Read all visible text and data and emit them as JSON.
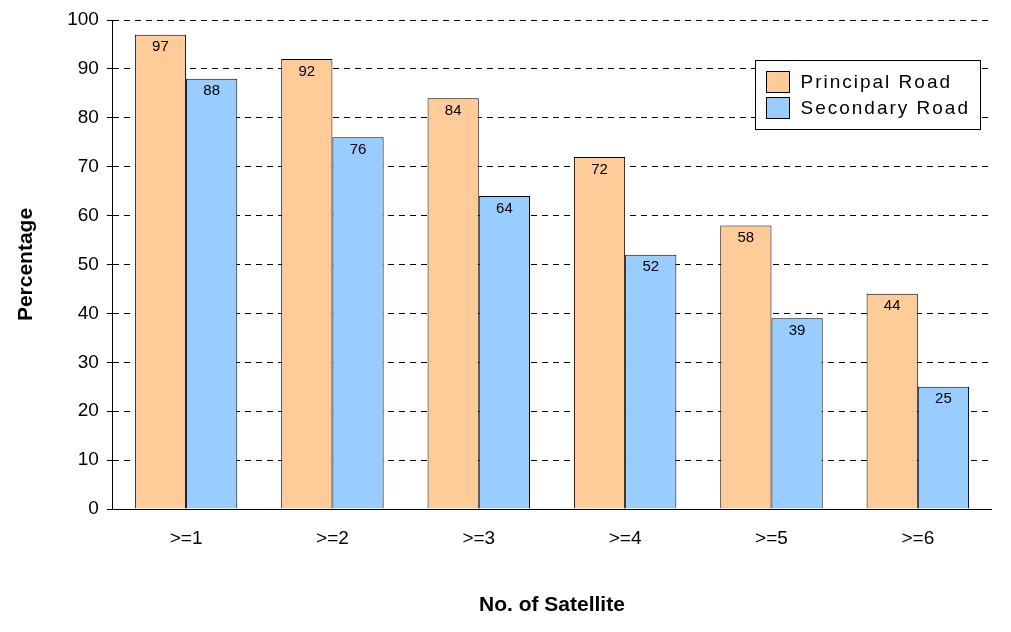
{
  "chart_data": {
    "type": "bar",
    "xlabel": "No. of Satellite",
    "ylabel": "Percentage",
    "categories": [
      ">=1",
      ">=2",
      ">=3",
      ">=4",
      ">=5",
      ">=6"
    ],
    "series": [
      {
        "name": "Principal Road",
        "color": "#ffcc99",
        "values": [
          97,
          92,
          84,
          72,
          58,
          44
        ]
      },
      {
        "name": "Secondary Road",
        "color": "#99ccff",
        "values": [
          88,
          76,
          64,
          52,
          39,
          25
        ]
      }
    ],
    "ylim": [
      0,
      100
    ],
    "yticks": [
      0,
      10,
      20,
      30,
      40,
      50,
      60,
      70,
      80,
      90,
      100
    ],
    "grid": "y",
    "line_style": "dashed",
    "legend": "top right",
    "data_labels": true
  }
}
